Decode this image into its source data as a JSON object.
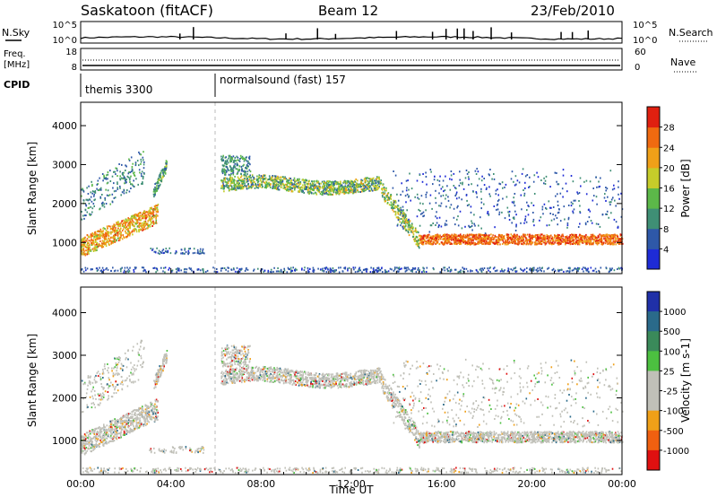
{
  "header": {
    "station": "Saskatoon (fitACF)",
    "beam": "Beam 12",
    "date": "23/Feb/2010"
  },
  "noise_panel": {
    "left_label": "N.Sky",
    "right_label": "N.Search",
    "left_ticks": [
      "10^5",
      "10^0"
    ],
    "right_ticks": [
      "10^5",
      "10^0"
    ]
  },
  "freq_panel": {
    "left_label_1": "Freq.",
    "left_label_2": "[MHz]",
    "right_label": "Nave",
    "left_ticks": [
      "18",
      "8"
    ],
    "right_ticks": [
      "60",
      "0"
    ]
  },
  "cpid": {
    "label": "CPID",
    "segments": [
      {
        "name": "themis 3300",
        "start_hour": 0
      },
      {
        "name": "normalsound (fast) 157",
        "start_hour": 6
      }
    ]
  },
  "chart_data": [
    {
      "type": "heatmap",
      "parameter": "power",
      "ylabel": "Slant Range [km]",
      "yticks": [
        1000,
        2000,
        3000,
        4000
      ],
      "ylim": [
        200,
        4600
      ],
      "xlim": [
        0,
        24
      ],
      "colorbar": {
        "label": "Power [dB]",
        "ticks": [
          "4",
          "8",
          "12",
          "16",
          "20",
          "24",
          "28"
        ],
        "colors": [
          "#1e2bd6",
          "#2e58a8",
          "#3f8f75",
          "#5cb849",
          "#c6cc2a",
          "#f0a018",
          "#f06a10",
          "#e02010"
        ]
      }
    },
    {
      "type": "heatmap",
      "parameter": "velocity",
      "ylabel": "Slant Range [km]",
      "yticks": [
        1000,
        2000,
        3000,
        4000
      ],
      "ylim": [
        200,
        4600
      ],
      "xlim": [
        0,
        24
      ],
      "xlabel": "Time UT",
      "xticks": [
        "00:00",
        "04:00",
        "08:00",
        "12:00",
        "16:00",
        "20:00",
        "00:00"
      ],
      "colorbar": {
        "label": "Velocity [m s-1]",
        "ticks": [
          "1000",
          "500",
          "100",
          "25",
          "-25",
          "-100",
          "-500",
          "-1000"
        ],
        "colors": [
          "#2030a8",
          "#2a6a8a",
          "#3a8a5a",
          "#4cc040",
          "#c0c0b8",
          "#c0c0b8",
          "#f0a018",
          "#f06010",
          "#e01010"
        ]
      }
    }
  ]
}
